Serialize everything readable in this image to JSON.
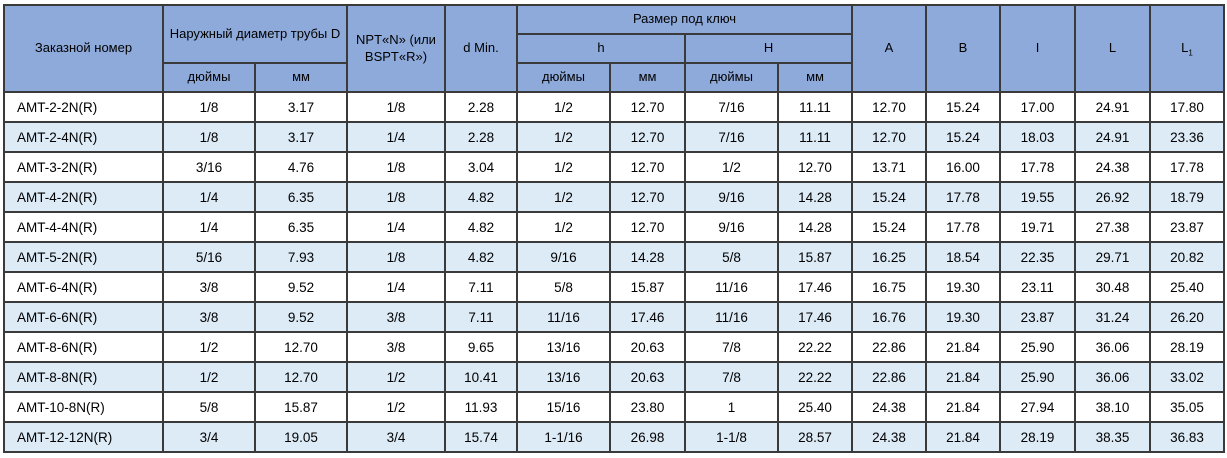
{
  "colors": {
    "header_bg": "#8EAADB",
    "row_alt_bg": "#DDEBF7",
    "row_bg": "#FFFFFF",
    "border": "#3A3A3A",
    "text": "#000000"
  },
  "table": {
    "header": {
      "order_number": "Заказной номер",
      "outer_diameter": "Наружный диаметр трубы D",
      "npt": "NPT«N» (или BSPT«R»)",
      "d_min": "d Min.",
      "wrench_size": "Размер под ключ",
      "h": "h",
      "H": "H",
      "inches": "дюймы",
      "mm": "мм",
      "A": "A",
      "B": "B",
      "I": "I",
      "L": "L",
      "L1_base": "L",
      "L1_sub": "1"
    },
    "rows": [
      [
        "AMT-2-2N(R)",
        "1/8",
        "3.17",
        "1/8",
        "2.28",
        "1/2",
        "12.70",
        "7/16",
        "11.11",
        "12.70",
        "15.24",
        "17.00",
        "24.91",
        "17.80"
      ],
      [
        "AMT-2-4N(R)",
        "1/8",
        "3.17",
        "1/4",
        "2.28",
        "1/2",
        "12.70",
        "7/16",
        "11.11",
        "12.70",
        "15.24",
        "18.03",
        "24.91",
        "23.36"
      ],
      [
        "AMT-3-2N(R)",
        "3/16",
        "4.76",
        "1/8",
        "3.04",
        "1/2",
        "12.70",
        "1/2",
        "12.70",
        "13.71",
        "16.00",
        "17.78",
        "24.38",
        "17.78"
      ],
      [
        "AMT-4-2N(R)",
        "1/4",
        "6.35",
        "1/8",
        "4.82",
        "1/2",
        "12.70",
        "9/16",
        "14.28",
        "15.24",
        "17.78",
        "19.55",
        "26.92",
        "18.79"
      ],
      [
        "AMT-4-4N(R)",
        "1/4",
        "6.35",
        "1/4",
        "4.82",
        "1/2",
        "12.70",
        "9/16",
        "14.28",
        "15.24",
        "17.78",
        "19.71",
        "27.38",
        "23.87"
      ],
      [
        "AMT-5-2N(R)",
        "5/16",
        "7.93",
        "1/8",
        "4.82",
        "9/16",
        "14.28",
        "5/8",
        "15.87",
        "16.25",
        "18.54",
        "22.35",
        "29.71",
        "20.82"
      ],
      [
        "AMT-6-4N(R)",
        "3/8",
        "9.52",
        "1/4",
        "7.11",
        "5/8",
        "15.87",
        "11/16",
        "17.46",
        "16.75",
        "19.30",
        "23.11",
        "30.48",
        "25.40"
      ],
      [
        "AMT-6-6N(R)",
        "3/8",
        "9.52",
        "3/8",
        "7.11",
        "11/16",
        "17.46",
        "11/16",
        "17.46",
        "16.76",
        "19.30",
        "23.87",
        "31.24",
        "26.20"
      ],
      [
        "AMT-8-6N(R)",
        "1/2",
        "12.70",
        "3/8",
        "9.65",
        "13/16",
        "20.63",
        "7/8",
        "22.22",
        "22.86",
        "21.84",
        "25.90",
        "36.06",
        "28.19"
      ],
      [
        "AMT-8-8N(R)",
        "1/2",
        "12.70",
        "1/2",
        "10.41",
        "13/16",
        "20.63",
        "7/8",
        "22.22",
        "22.86",
        "21.84",
        "25.90",
        "36.06",
        "33.02"
      ],
      [
        "AMT-10-8N(R)",
        "5/8",
        "15.87",
        "1/2",
        "11.93",
        "15/16",
        "23.80",
        "1",
        "25.40",
        "24.38",
        "21.84",
        "27.94",
        "38.10",
        "35.05"
      ],
      [
        "AMT-12-12N(R)",
        "3/4",
        "19.05",
        "3/4",
        "15.74",
        "1-1/16",
        "26.98",
        "1-1/8",
        "28.57",
        "24.38",
        "21.84",
        "28.19",
        "38.35",
        "36.83"
      ]
    ]
  }
}
